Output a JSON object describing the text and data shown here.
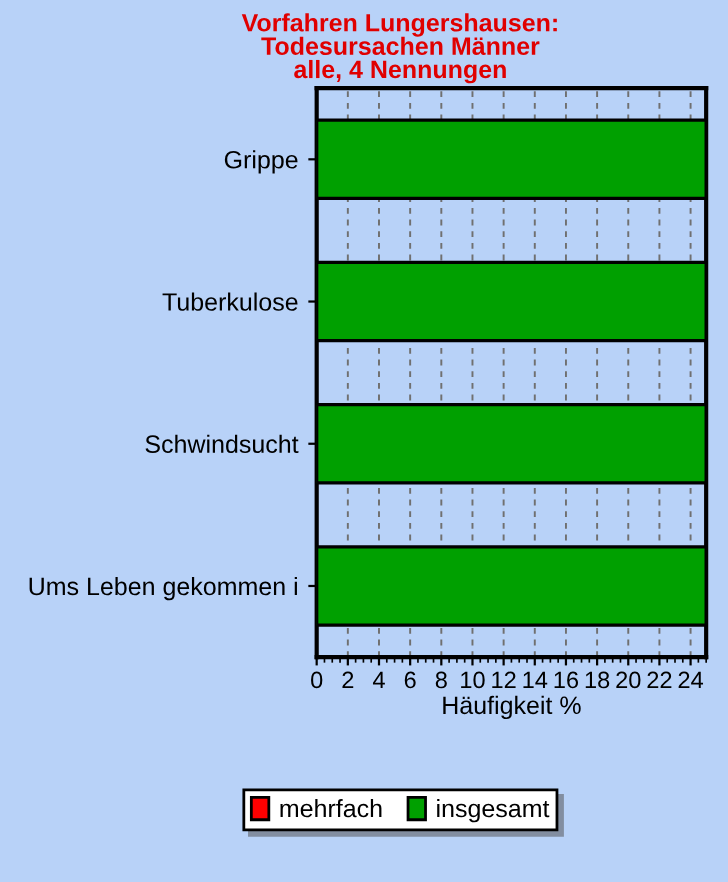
{
  "chart_data": {
    "type": "bar",
    "orientation": "horizontal",
    "title": "Vorfahren Lungershausen:\nTodesursachen Männer\nalle, 4 Nennungen",
    "xlabel": "Häufigkeit %",
    "categories": [
      "Grippe",
      "Tuberkulose",
      "Schwindsucht",
      "Ums Leben gekommen i"
    ],
    "series": [
      {
        "name": "mehrfach",
        "color": "#ff0000",
        "values": [
          0,
          0,
          0,
          0
        ]
      },
      {
        "name": "insgesamt",
        "color": "#00a000",
        "values": [
          25,
          25,
          25,
          25
        ]
      }
    ],
    "xlim": [
      0,
      25
    ],
    "xticks": [
      0,
      2,
      4,
      6,
      8,
      10,
      12,
      14,
      16,
      18,
      20,
      22,
      24
    ],
    "grid": "x",
    "legend": "bottom"
  }
}
